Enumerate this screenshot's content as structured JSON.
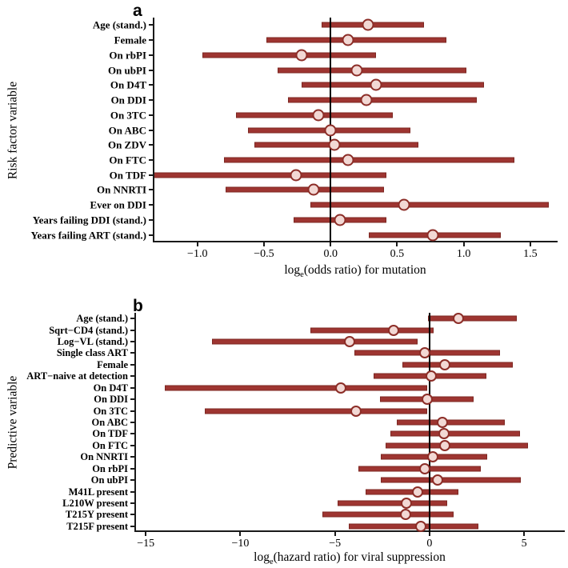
{
  "figure": {
    "panels": [
      {
        "label": "a",
        "y_axis_title": "Risk factor variable",
        "x_axis_title": {
          "pre": "log",
          "sub": "e",
          "post": "(odds ratio) for mutation"
        }
      },
      {
        "label": "b",
        "y_axis_title": "Predictive variable",
        "x_axis_title": {
          "pre": "log",
          "sub": "e",
          "post": "(hazard ratio) for viral suppression"
        }
      }
    ]
  },
  "colors": {
    "bar": "#9e3531",
    "bar_edge": "#7d2722",
    "marker_fill": "#f2d8d4",
    "marker_ring": "#8c2d27",
    "axis": "#1a1a1a",
    "reference_line": "#000000",
    "background": "#ffffff",
    "text": "#000000"
  },
  "chart_data": [
    {
      "type": "scatter",
      "subtype": "forest-plot",
      "panel": "a",
      "xlabel": "loge(odds ratio) for mutation",
      "ylabel": "Risk factor variable",
      "xlim": [
        -1.335,
        1.705
      ],
      "xticks": [
        -1.0,
        -0.5,
        0.0,
        0.5,
        1.0,
        1.5
      ],
      "xtick_labels": [
        "−1.0",
        "−0.5",
        "0.0",
        "0.5",
        "1.0",
        "1.5"
      ],
      "reference_line_x": 0,
      "grid": false,
      "legend": "none",
      "rows": [
        {
          "label": "Age (stand.)",
          "ci_low": -0.07,
          "estimate": 0.28,
          "ci_high": 0.7
        },
        {
          "label": "Female",
          "ci_low": -0.48,
          "estimate": 0.13,
          "ci_high": 0.87
        },
        {
          "label": "On rbPI",
          "ci_low": -0.96,
          "estimate": -0.22,
          "ci_high": 0.34
        },
        {
          "label": "On ubPI",
          "ci_low": -0.4,
          "estimate": 0.2,
          "ci_high": 1.02
        },
        {
          "label": "On D4T",
          "ci_low": -0.22,
          "estimate": 0.34,
          "ci_high": 1.15
        },
        {
          "label": "On DDI",
          "ci_low": -0.32,
          "estimate": 0.27,
          "ci_high": 1.1
        },
        {
          "label": "On 3TC",
          "ci_low": -0.71,
          "estimate": -0.09,
          "ci_high": 0.47
        },
        {
          "label": "On ABC",
          "ci_low": -0.62,
          "estimate": 0.0,
          "ci_high": 0.6
        },
        {
          "label": "On ZDV",
          "ci_low": -0.57,
          "estimate": 0.03,
          "ci_high": 0.66
        },
        {
          "label": "On FTC",
          "ci_low": -0.8,
          "estimate": 0.13,
          "ci_high": 1.38
        },
        {
          "label": "On TDF",
          "ci_low": -1.33,
          "estimate": -0.26,
          "ci_high": 0.42
        },
        {
          "label": "On NNRTI",
          "ci_low": -0.79,
          "estimate": -0.13,
          "ci_high": 0.4
        },
        {
          "label": "Ever on DDI",
          "ci_low": -0.15,
          "estimate": 0.55,
          "ci_high": 1.64
        },
        {
          "label": "Years failing DDI (stand.)",
          "ci_low": -0.28,
          "estimate": 0.07,
          "ci_high": 0.42
        },
        {
          "label": "Years failing ART (stand.)",
          "ci_low": 0.29,
          "estimate": 0.77,
          "ci_high": 1.28
        }
      ]
    },
    {
      "type": "scatter",
      "subtype": "forest-plot",
      "panel": "b",
      "xlabel": "loge(hazard ratio) for viral suppression",
      "ylabel": "Predictive variable",
      "xlim": [
        -15.6,
        7.15
      ],
      "xticks": [
        -15,
        -10,
        -5,
        0,
        5
      ],
      "xtick_labels": [
        "−15",
        "−10",
        "−5",
        "0",
        "5"
      ],
      "reference_line_x": 0,
      "grid": false,
      "legend": "none",
      "rows": [
        {
          "label": "Age (stand.)",
          "ci_low": -0.1,
          "estimate": 1.53,
          "ci_high": 4.6
        },
        {
          "label": "Sqrt−CD4 (stand.)",
          "ci_low": -6.3,
          "estimate": -1.9,
          "ci_high": 0.2
        },
        {
          "label": "Log−VL (stand.)",
          "ci_low": -11.5,
          "estimate": -4.22,
          "ci_high": -0.65
        },
        {
          "label": "Single class ART",
          "ci_low": -3.96,
          "estimate": -0.25,
          "ci_high": 3.72
        },
        {
          "label": "Female",
          "ci_low": -1.42,
          "estimate": 0.8,
          "ci_high": 4.4
        },
        {
          "label": "ART−naive at detection",
          "ci_low": -2.97,
          "estimate": 0.08,
          "ci_high": 3.01
        },
        {
          "label": "On D4T",
          "ci_low": -14.0,
          "estimate": -4.69,
          "ci_high": -0.11
        },
        {
          "label": "On DDI",
          "ci_low": -2.62,
          "estimate": -0.11,
          "ci_high": 2.34
        },
        {
          "label": "On 3TC",
          "ci_low": -11.86,
          "estimate": -3.9,
          "ci_high": -0.13
        },
        {
          "label": "On ABC",
          "ci_low": -1.75,
          "estimate": 0.67,
          "ci_high": 4.0
        },
        {
          "label": "On TDF",
          "ci_low": -2.07,
          "estimate": 0.78,
          "ci_high": 4.77
        },
        {
          "label": "On FTC",
          "ci_low": -2.32,
          "estimate": 0.82,
          "ci_high": 5.19
        },
        {
          "label": "On NNRTI",
          "ci_low": -2.57,
          "estimate": 0.19,
          "ci_high": 3.04
        },
        {
          "label": "On rbPI",
          "ci_low": -3.78,
          "estimate": -0.23,
          "ci_high": 2.72
        },
        {
          "label": "On ubPI",
          "ci_low": -2.57,
          "estimate": 0.44,
          "ci_high": 4.81
        },
        {
          "label": "M41L present",
          "ci_low": -3.4,
          "estimate": -0.62,
          "ci_high": 1.51
        },
        {
          "label": "L210W present",
          "ci_low": -4.88,
          "estimate": -1.21,
          "ci_high": 0.93
        },
        {
          "label": "T215Y present",
          "ci_low": -5.65,
          "estimate": -1.25,
          "ci_high": 1.28
        },
        {
          "label": "T215F present",
          "ci_low": -4.27,
          "estimate": -0.48,
          "ci_high": 2.59
        }
      ]
    }
  ]
}
